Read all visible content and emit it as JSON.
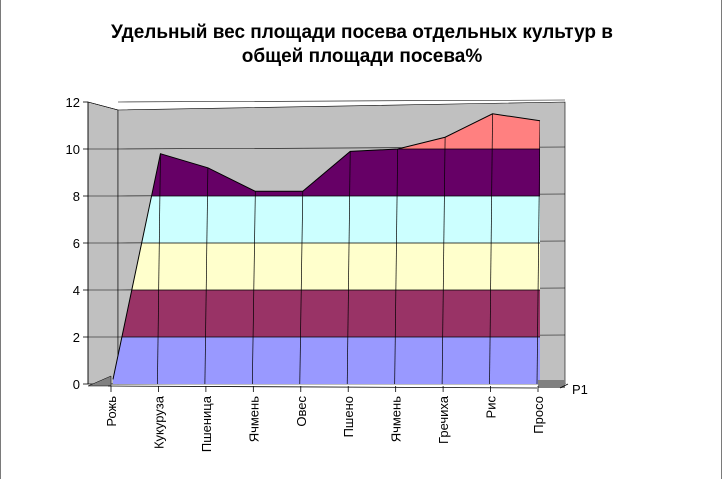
{
  "chart_data": {
    "type": "surface-3d",
    "title_line1": "Удельный вес площади посева отдельных культур в",
    "title_line2": "общей площади посева%",
    "categories": [
      "Рожь",
      "Кукуруза",
      "Пшеница",
      "Ячмень",
      "Овес",
      "Пшено",
      "Ячмень",
      "Гречиха",
      "Рис",
      "Просо"
    ],
    "series_name": "Р1",
    "values": [
      0.2,
      9.8,
      9.2,
      8.2,
      8.2,
      9.9,
      10.0,
      10.5,
      11.5,
      11.2
    ],
    "values_back": [
      0.2,
      9.9,
      9.3,
      8.3,
      8.3,
      10.0,
      10.1,
      10.6,
      11.5,
      11.3
    ],
    "y_ticks": [
      0,
      2,
      4,
      6,
      8,
      10,
      12
    ],
    "ylim": [
      0,
      12
    ],
    "bands": [
      {
        "from": 0,
        "to": 2,
        "color": "#9999ff"
      },
      {
        "from": 2,
        "to": 4,
        "color": "#993366"
      },
      {
        "from": 4,
        "to": 6,
        "color": "#ffffcc"
      },
      {
        "from": 6,
        "to": 8,
        "color": "#ccffff"
      },
      {
        "from": 8,
        "to": 10,
        "color": "#660066"
      },
      {
        "from": 10,
        "to": 12,
        "color": "#ff8080"
      }
    ],
    "wall_color": "#c0c0c0",
    "floor_color": "#808080",
    "gridlines": true
  }
}
